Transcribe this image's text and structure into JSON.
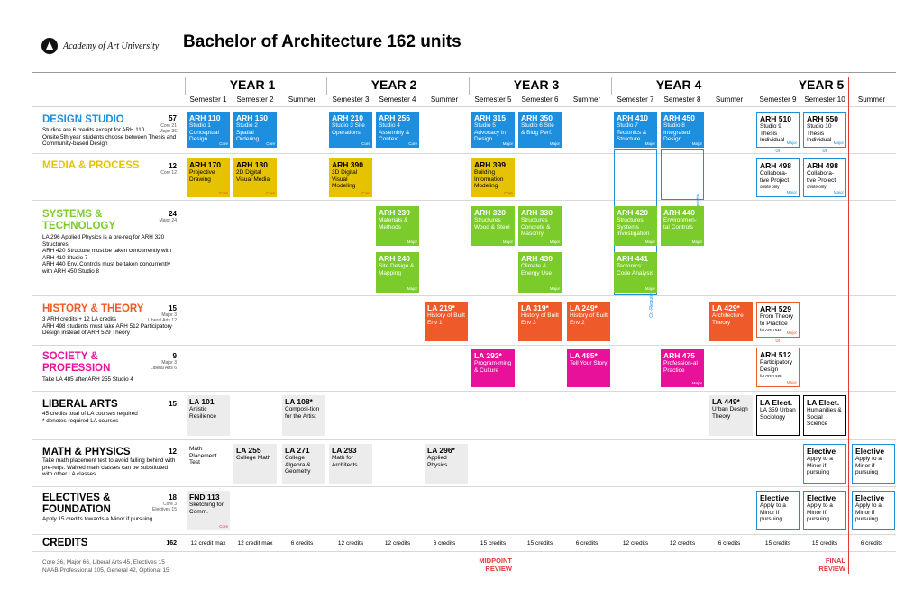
{
  "header": {
    "logo_text": "Academy of Art University",
    "title": "Bachelor of Architecture 162 units"
  },
  "years": [
    "YEAR 1",
    "YEAR 2",
    "YEAR 3",
    "YEAR 4",
    "YEAR 5"
  ],
  "semesters": [
    "Semester 1",
    "Semester 2",
    "Summer",
    "Semester 3",
    "Semester 4",
    "Summer",
    "Semester 5",
    "Semester 6",
    "Summer",
    "Semester 7",
    "Semester 8",
    "Summer",
    "Semester 9",
    "Semester 10",
    "Summer"
  ],
  "rows": {
    "design": {
      "title": "DESIGN STUDIO",
      "num": "57",
      "sub": "Core 21\nMajor 36",
      "note": "Studios are 6 credits except for ARH 110\nOnsite 5th year students choose between Thesis and Community-based Design"
    },
    "media": {
      "title": "MEDIA & PROCESS",
      "num": "12",
      "sub": "Core 12",
      "note": ""
    },
    "systems": {
      "title": "SYSTEMS & TECHNOLOGY",
      "num": "24",
      "sub": "Major 24",
      "note": "LA 296 Applied Physics is a pre-req for ARH 320 Structures\nARH 420 Structure must be taken concurrently with ARH 410 Studio 7\nARH 440 Env. Controls must be taken concurrently with ARH 450 Studio 8"
    },
    "history": {
      "title": "HISTORY & THEORY",
      "num": "15",
      "sub": "Major 3\nLiberal Arts 12",
      "note": "3 ARH credits + 12 LA credits\nARH 498 students must take ARH 512 Participatory Design instead of ARH 529 Theory"
    },
    "society": {
      "title": "SOCIETY & PROFESSION",
      "num": "9",
      "sub": "Major 3\nLiberal Arts 6",
      "note": "Take LA 485 after ARH 255 Studio 4"
    },
    "liberal": {
      "title": "LIBERAL ARTS",
      "num": "15",
      "sub": "",
      "note": "45 credits total of LA courses required\n* denotes required LA courses"
    },
    "math": {
      "title": "MATH & PHYSICS",
      "num": "12",
      "sub": "",
      "note": "Take math placement test to avoid falling behind with pre-reqs. Waived math classes can be substituted with other LA classes."
    },
    "electives": {
      "title": "ELECTIVES & FOUNDATION",
      "num": "18",
      "sub": "Core 3\nElectives 15",
      "note": "Apply 15 credits towards a Minor if pursuing"
    }
  },
  "cells": {
    "arh110": {
      "code": "ARH 110",
      "desc": "Studio 1 Conceptual Design",
      "tag": "Core"
    },
    "arh150": {
      "code": "ARH 150",
      "desc": "Studio 2 Spatial Ordering",
      "tag": "Core"
    },
    "arh210": {
      "code": "ARH 210",
      "desc": "Studio 3 Site Operations",
      "tag": "Core"
    },
    "arh255": {
      "code": "ARH 255",
      "desc": "Studio 4 Assembly & Context",
      "tag": "Core"
    },
    "arh315": {
      "code": "ARH 315",
      "desc": "Studio 5 Advocacy in Design",
      "tag": "Major"
    },
    "arh350": {
      "code": "ARH 350",
      "desc": "Studio 6 Site & Bldg Perf.",
      "tag": "Major"
    },
    "arh410": {
      "code": "ARH 410",
      "desc": "Studio 7 Tectonics & Structure",
      "tag": "Major"
    },
    "arh450": {
      "code": "ARH 450",
      "desc": "Studio 8 Integrated Design",
      "tag": "Major"
    },
    "arh510": {
      "code": "ARH 510",
      "desc": "Studio 9 Thesis Individual",
      "tag": "Major"
    },
    "arh550": {
      "code": "ARH 550",
      "desc": "Studio 10 Thesis Individual",
      "tag": "Major"
    },
    "arh498a": {
      "code": "ARH 498",
      "desc": "Collabora-tive Project",
      "small": "onsite only",
      "tag": "Major"
    },
    "arh498b": {
      "code": "ARH 498",
      "desc": "Collabora-tive Project",
      "small": "onsite only",
      "tag": "Major"
    },
    "arh170": {
      "code": "ARH 170",
      "desc": "Projective Drawing",
      "tag": "Core"
    },
    "arh180": {
      "code": "ARH 180",
      "desc": "2D Digital Visual Media",
      "tag": "Core"
    },
    "arh390": {
      "code": "ARH 390",
      "desc": "3D Digital Visual Modeling",
      "tag": "Core"
    },
    "arh399": {
      "code": "ARH 399",
      "desc": "Building Information Modeling",
      "tag": "Core"
    },
    "arh239": {
      "code": "ARH 239",
      "desc": "Materials & Methods",
      "tag": "Major"
    },
    "arh240": {
      "code": "ARH 240",
      "desc": "Site Design & Mapping",
      "tag": "Major"
    },
    "arh320": {
      "code": "ARH 320",
      "desc": "Structures Wood & Steel",
      "tag": "Major"
    },
    "arh330": {
      "code": "ARH 330",
      "desc": "Structures Concrete & Masonry",
      "tag": "Major"
    },
    "arh430": {
      "code": "ARH 430",
      "desc": "Climate & Energy Use",
      "tag": "Major"
    },
    "arh420": {
      "code": "ARH 420",
      "desc": "Structures Systems Investigation",
      "tag": "Major"
    },
    "arh441": {
      "code": "ARH 441",
      "desc": "Tectonics: Code Analysis",
      "tag": "Major"
    },
    "arh440": {
      "code": "ARH 440",
      "desc": "Environmen-tal Controls",
      "tag": "Major"
    },
    "la219": {
      "code": "LA 219*",
      "desc": "History of Built Env 1"
    },
    "la319": {
      "code": "LA 319*",
      "desc": "History of Built Env 3"
    },
    "la249": {
      "code": "LA 249*",
      "desc": "History of Built Env 2"
    },
    "la429": {
      "code": "LA 429*",
      "desc": "Architecture Theory"
    },
    "arh529": {
      "code": "ARH 529",
      "desc": "From Theory to Practice",
      "small": "for ARH 510",
      "tag": "Major"
    },
    "arh512": {
      "code": "ARH 512",
      "desc": "Participatory Design",
      "small": "for ARH 498",
      "tag": "Major"
    },
    "la292": {
      "code": "LA 292*",
      "desc": "Program-ming & Culture"
    },
    "la485": {
      "code": "LA 485*",
      "desc": "Tell Your Story"
    },
    "arh475": {
      "code": "ARH 475",
      "desc": "Profession-al Practice",
      "tag": "Major"
    },
    "la101": {
      "code": "LA 101",
      "desc": "Artistic Resilience"
    },
    "la108": {
      "code": "LA 108*",
      "desc": "Composi-tion for the Artist"
    },
    "la449": {
      "code": "LA 449*",
      "desc": "Urban Design Theory"
    },
    "laelect1": {
      "code": "LA Elect.",
      "desc": "LA 359 Urban Sociology"
    },
    "laelect2": {
      "code": "LA Elect.",
      "desc": "Humanities & Social Science"
    },
    "mathtest": {
      "code": "",
      "desc": "Math Placement Test"
    },
    "la255": {
      "code": "LA 255",
      "desc": "College Math"
    },
    "la271": {
      "code": "LA 271",
      "desc": "College Algebra & Geometry"
    },
    "la293": {
      "code": "LA 293",
      "desc": "Math for Architects"
    },
    "la296": {
      "code": "LA 296*",
      "desc": "Applied Physics"
    },
    "elec_m10": {
      "code": "Elective",
      "desc": "Apply to a Minor if pursuing"
    },
    "elec_msum": {
      "code": "Elective",
      "desc": "Apply to a Minor if pursuing"
    },
    "fnd113": {
      "code": "FND 113",
      "desc": "Sketching for Comm.",
      "tag": "Core"
    },
    "elec_e9": {
      "code": "Elective",
      "desc": "Apply to a Minor if pursuing"
    },
    "elec_e10": {
      "code": "Elective",
      "desc": "Apply to a Minor if pursuing"
    },
    "elec_esum": {
      "code": "Elective",
      "desc": "Apply to a Minor if pursuing"
    }
  },
  "or_label": "or",
  "coreq_label": "Co-Requisite",
  "credits": {
    "title": "CREDITS",
    "total": "162",
    "values": [
      "12 credit max",
      "12 credit max",
      "6 credits",
      "12 credits",
      "12 credits",
      "6 credits",
      "15 credits",
      "15 credits",
      "6 credits",
      "12 credits",
      "12 credits",
      "6 credits",
      "15 credits",
      "15 credits",
      "6 credits"
    ]
  },
  "reviews": {
    "midpoint": "MIDPOINT\nREVIEW",
    "final": "FINAL\nREVIEW"
  },
  "footer": "Core 36, Major 66, Liberal Arts 45, Electives 15\nNAAB Professional 105, General 42, Optional 15",
  "colors": {
    "design": "#1e8fdf",
    "media": "#e6c300",
    "systems": "#7bcc2a",
    "history": "#ee5a2a",
    "society": "#e8129a",
    "review": "#e53935"
  }
}
